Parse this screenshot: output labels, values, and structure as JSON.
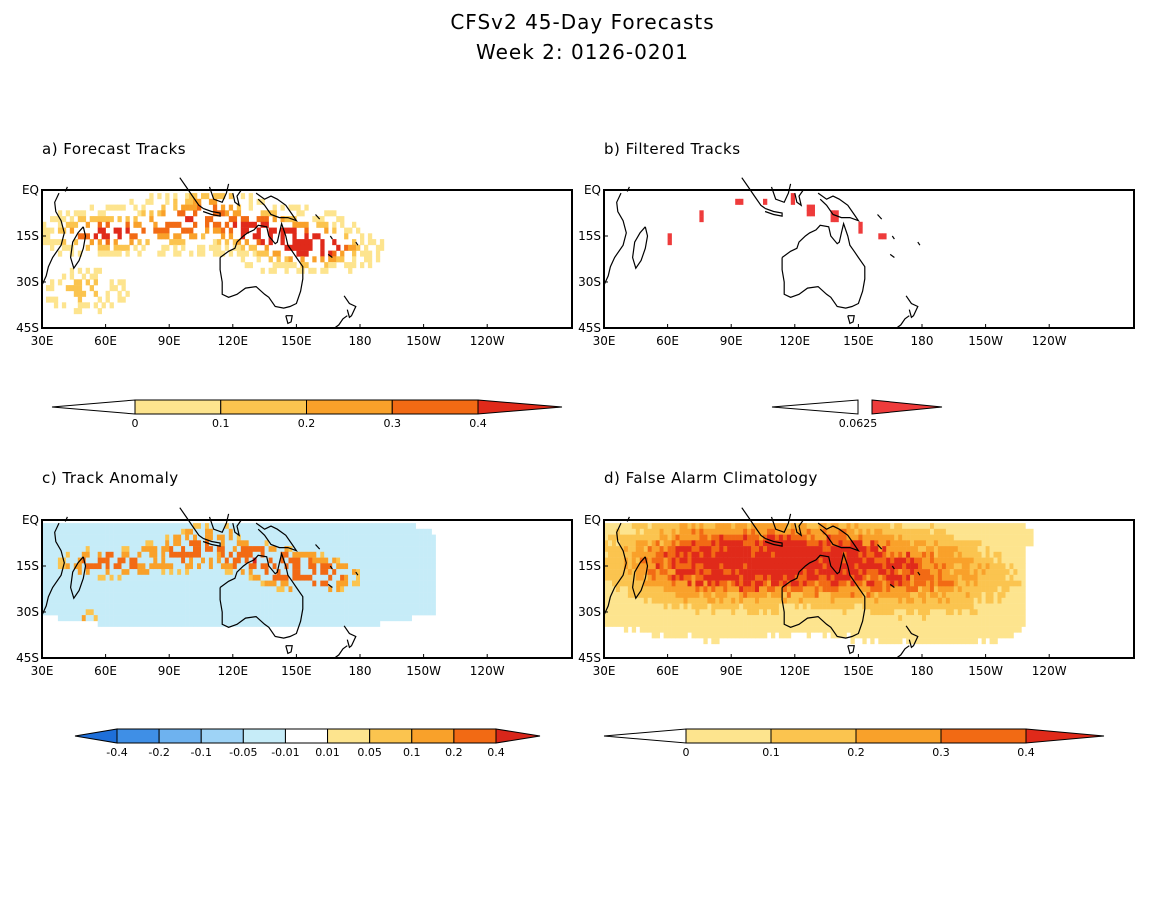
{
  "page": {
    "title_line1": "CFSv2 45-Day Forecasts",
    "title_line2": "Week 2: 0126-0201"
  },
  "lat_labels": [
    "EQ",
    "15S",
    "30S",
    "45S"
  ],
  "lon_labels": [
    "30E",
    "60E",
    "90E",
    "120E",
    "150E",
    "180",
    "150W",
    "120W"
  ],
  "panels": [
    {
      "id": "a",
      "label": "a) Forecast Tracks",
      "field": "tracks",
      "colorbar": {
        "labels": [
          "0",
          "0.1",
          "0.2",
          "0.3",
          "0.4"
        ],
        "colors": [
          "#ffffff",
          "#fde48e",
          "#fbc44f",
          "#f9a12a",
          "#f26a14",
          "#e02a1a"
        ]
      }
    },
    {
      "id": "b",
      "label": "b) Filtered Tracks",
      "field": "filtered",
      "colorbar": {
        "labels": [
          "0.0625"
        ],
        "colors": [
          "#ffffff",
          "#ee3b3b"
        ]
      }
    },
    {
      "id": "c",
      "label": "c) Track Anomaly",
      "field": "anomaly",
      "colorbar": {
        "labels": [
          "-0.4",
          "-0.2",
          "-0.1",
          "-0.05",
          "-0.01",
          "0.01",
          "0.05",
          "0.1",
          "0.2",
          "0.4"
        ],
        "colors": [
          "#1e6fd9",
          "#3f8fe6",
          "#6eb2ef",
          "#9ed3f6",
          "#c6ecf8",
          "#ffffff",
          "#fde48e",
          "#fbc44f",
          "#f9a12a",
          "#f26a14",
          "#d8261a"
        ]
      }
    },
    {
      "id": "d",
      "label": "d) False Alarm Climatology",
      "field": "climatology",
      "colorbar": {
        "labels": [
          "0",
          "0.1",
          "0.2",
          "0.3",
          "0.4"
        ],
        "colors": [
          "#ffffff",
          "#fde48e",
          "#fbc44f",
          "#f9a12a",
          "#f26a14",
          "#e02a1a"
        ]
      }
    }
  ]
}
